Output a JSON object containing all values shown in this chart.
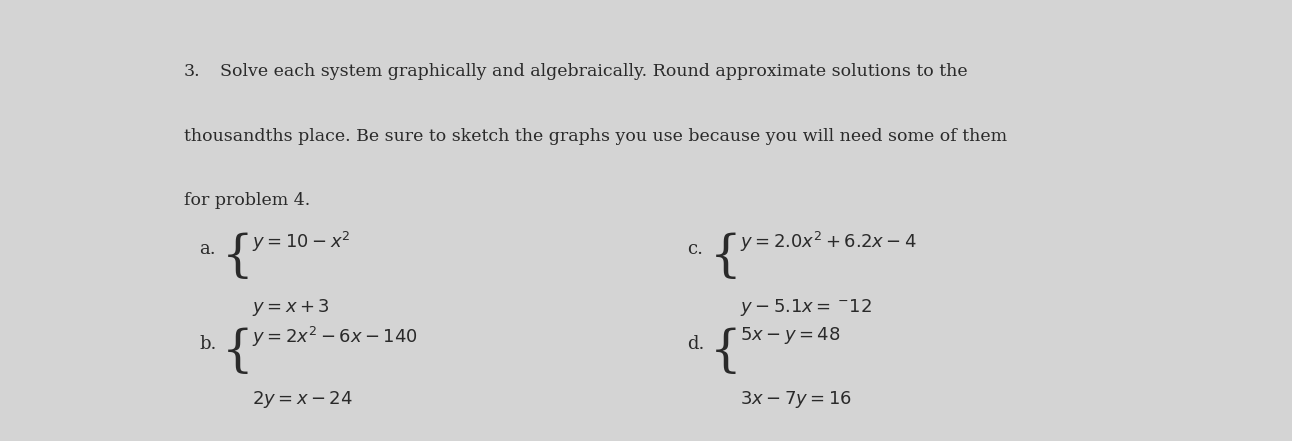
{
  "background_color": "#d4d4d4",
  "number": "3.",
  "intro_text_line1": "Solve each system graphically and algebraically. Round approximate solutions to the",
  "intro_text_line2": "thousandths place. Be sure to sketch the graphs you use because you will need some of them",
  "intro_text_line3": "for problem 4.",
  "label_a": "a.",
  "label_b": "b.",
  "label_c": "c.",
  "label_d": "d.",
  "text_color": "#2a2a2a",
  "font_size_intro": 12.5,
  "font_size_eq": 13.0,
  "font_size_label": 13.0,
  "font_size_brace": 36
}
